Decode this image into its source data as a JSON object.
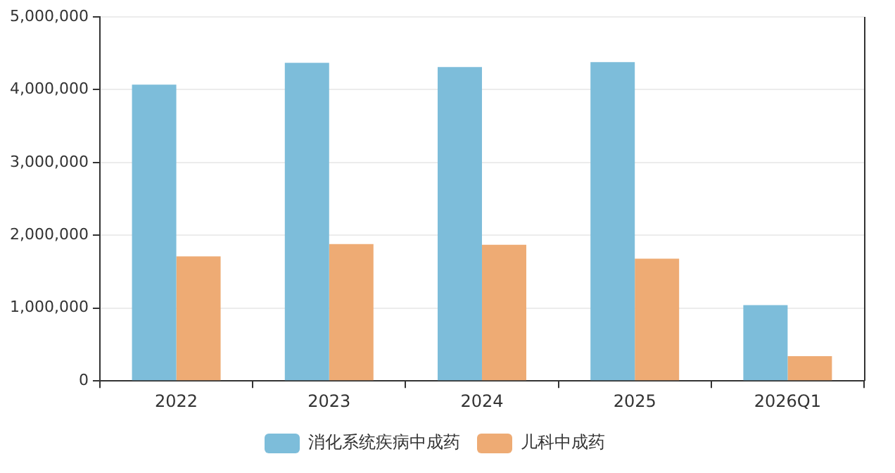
{
  "chart_data": {
    "type": "bar",
    "categories": [
      "2022",
      "2023",
      "2024",
      "2025",
      "2026Q1"
    ],
    "series": [
      {
        "name": "消化系统疾病中成药",
        "color": "#7dbdda",
        "values": [
          4070000,
          4370000,
          4310000,
          4380000,
          1040000
        ]
      },
      {
        "name": "儿科中成药",
        "color": "#eeab74",
        "values": [
          1710000,
          1880000,
          1870000,
          1680000,
          340000
        ]
      }
    ],
    "ylim": [
      0,
      5000000
    ],
    "yticks": [
      0,
      {
        "value": 1000000,
        "label": "1,000,000"
      },
      {
        "value": 2000000,
        "label": "2,000,000"
      },
      {
        "value": 3000000,
        "label": "3,000,000"
      },
      {
        "value": 4000000,
        "label": "4,000,000"
      },
      {
        "value": 5000000,
        "label": "5,000,000"
      }
    ],
    "grid": "y",
    "legend": "bottom"
  }
}
